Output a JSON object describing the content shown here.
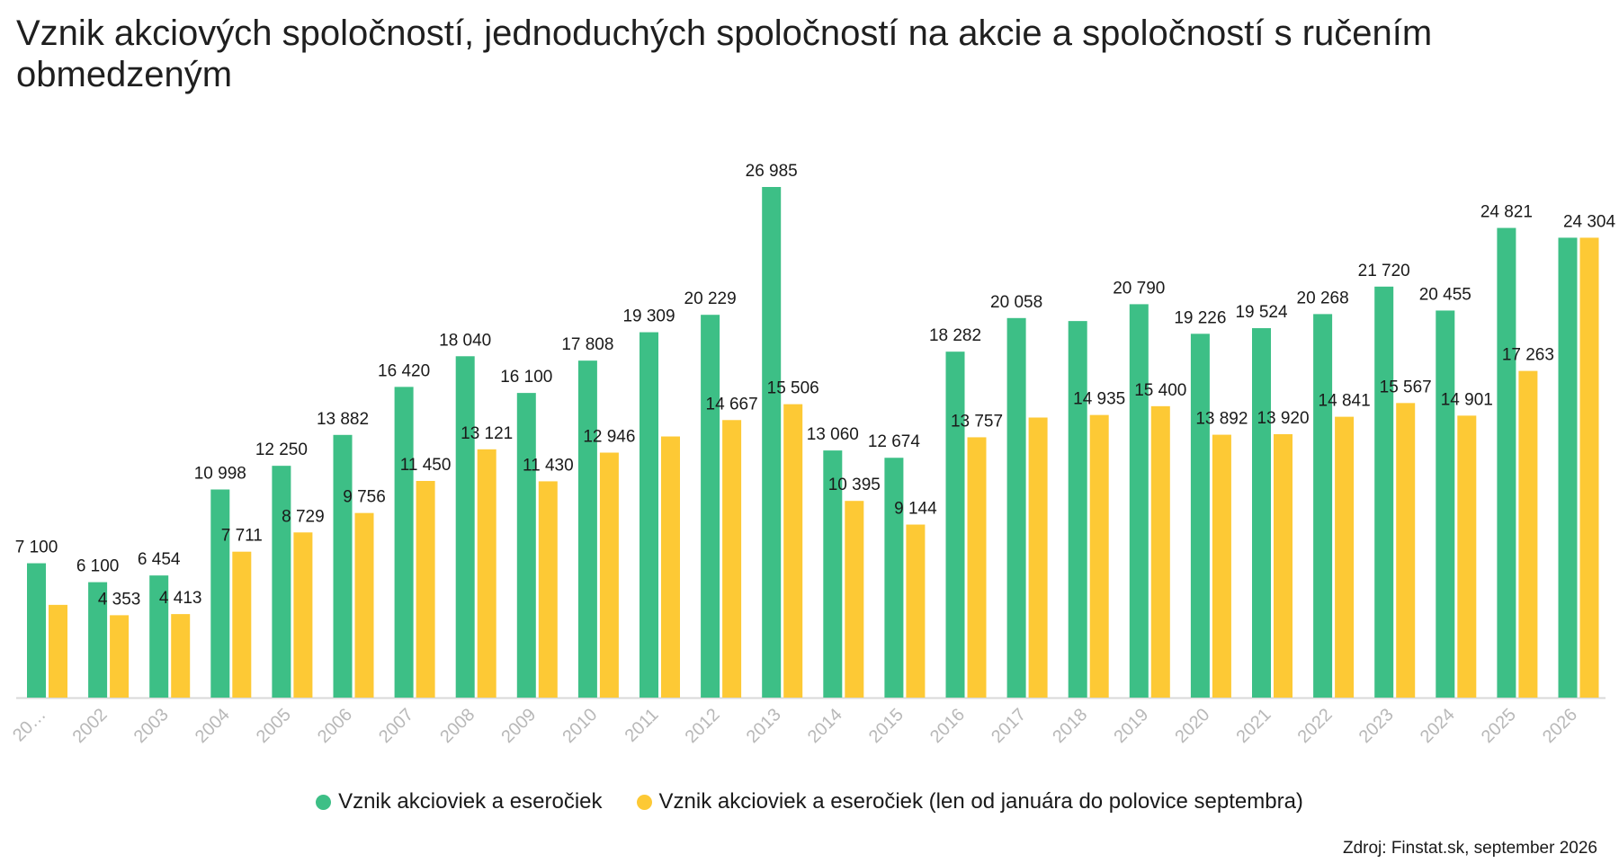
{
  "colors": {
    "green": "#3dbf86",
    "yellow": "#fdc935",
    "axis": "#d8d8d8",
    "tick": "#b8b8b8"
  },
  "chart_data": {
    "type": "bar",
    "title": "Vznik akciových spoločností, jednoduchých spoločností na akcie a spoločností s ručením obmedzeným",
    "categories": [
      "20…",
      "2002",
      "2003",
      "2004",
      "2005",
      "2006",
      "2007",
      "2008",
      "2009",
      "2010",
      "2011",
      "2012",
      "2013",
      "2014",
      "2015",
      "2016",
      "2017",
      "2018",
      "2019",
      "2020",
      "2021",
      "2022",
      "2023",
      "2024",
      "2025",
      "2026"
    ],
    "series": [
      {
        "name": "Vznik akcioviek a eseročiek",
        "values": [
          7100,
          6100,
          6454,
          10998,
          12250,
          13882,
          16420,
          18040,
          16100,
          17808,
          19309,
          20229,
          26985,
          13060,
          12674,
          18282,
          20058,
          19900,
          20790,
          19226,
          19524,
          20268,
          21720,
          20455,
          24821,
          24304
        ],
        "labels": [
          "7 100",
          "6 100",
          "6 454",
          "10 998",
          "12 250",
          "13 882",
          "16 420",
          "18 040",
          "16 100",
          "17 808",
          "19 309",
          "20 229",
          "26 985",
          "13 060",
          "12 674",
          "18 282",
          "20 058",
          "",
          "20 790",
          "19 226",
          "19 524",
          "20 268",
          "21 720",
          "20 455",
          "24 821",
          ""
        ]
      },
      {
        "name": "Vznik akcioviek a eseročiek (len od januára do polovice septembra)",
        "values": [
          4900,
          4353,
          4413,
          7711,
          8729,
          9756,
          11450,
          13121,
          11430,
          12946,
          13800,
          14667,
          15506,
          10395,
          9144,
          13757,
          14800,
          14935,
          15400,
          13892,
          13920,
          14841,
          15567,
          14901,
          17263,
          24304
        ],
        "labels": [
          "",
          "4 353",
          "4 413",
          "7 711",
          "8 729",
          "9 756",
          "11 450",
          "13 121",
          "11 430",
          "12 946",
          "",
          "14 667",
          "15 506",
          "10 395",
          "9 144",
          "13 757",
          "",
          "14 935",
          "15 400",
          "13 892",
          "13 920",
          "14 841",
          "15 567",
          "14 901",
          "17 263",
          "24 304"
        ]
      }
    ],
    "ylim": [
      0,
      27000
    ],
    "grid": false,
    "legend_position": "bottom"
  },
  "legend": {
    "item1": "Vznik akcioviek a eseročiek",
    "item2": "Vznik akcioviek a eseročiek (len od januára do polovice septembra)"
  },
  "source": "Zdroj: Finstat.sk, september 2026"
}
